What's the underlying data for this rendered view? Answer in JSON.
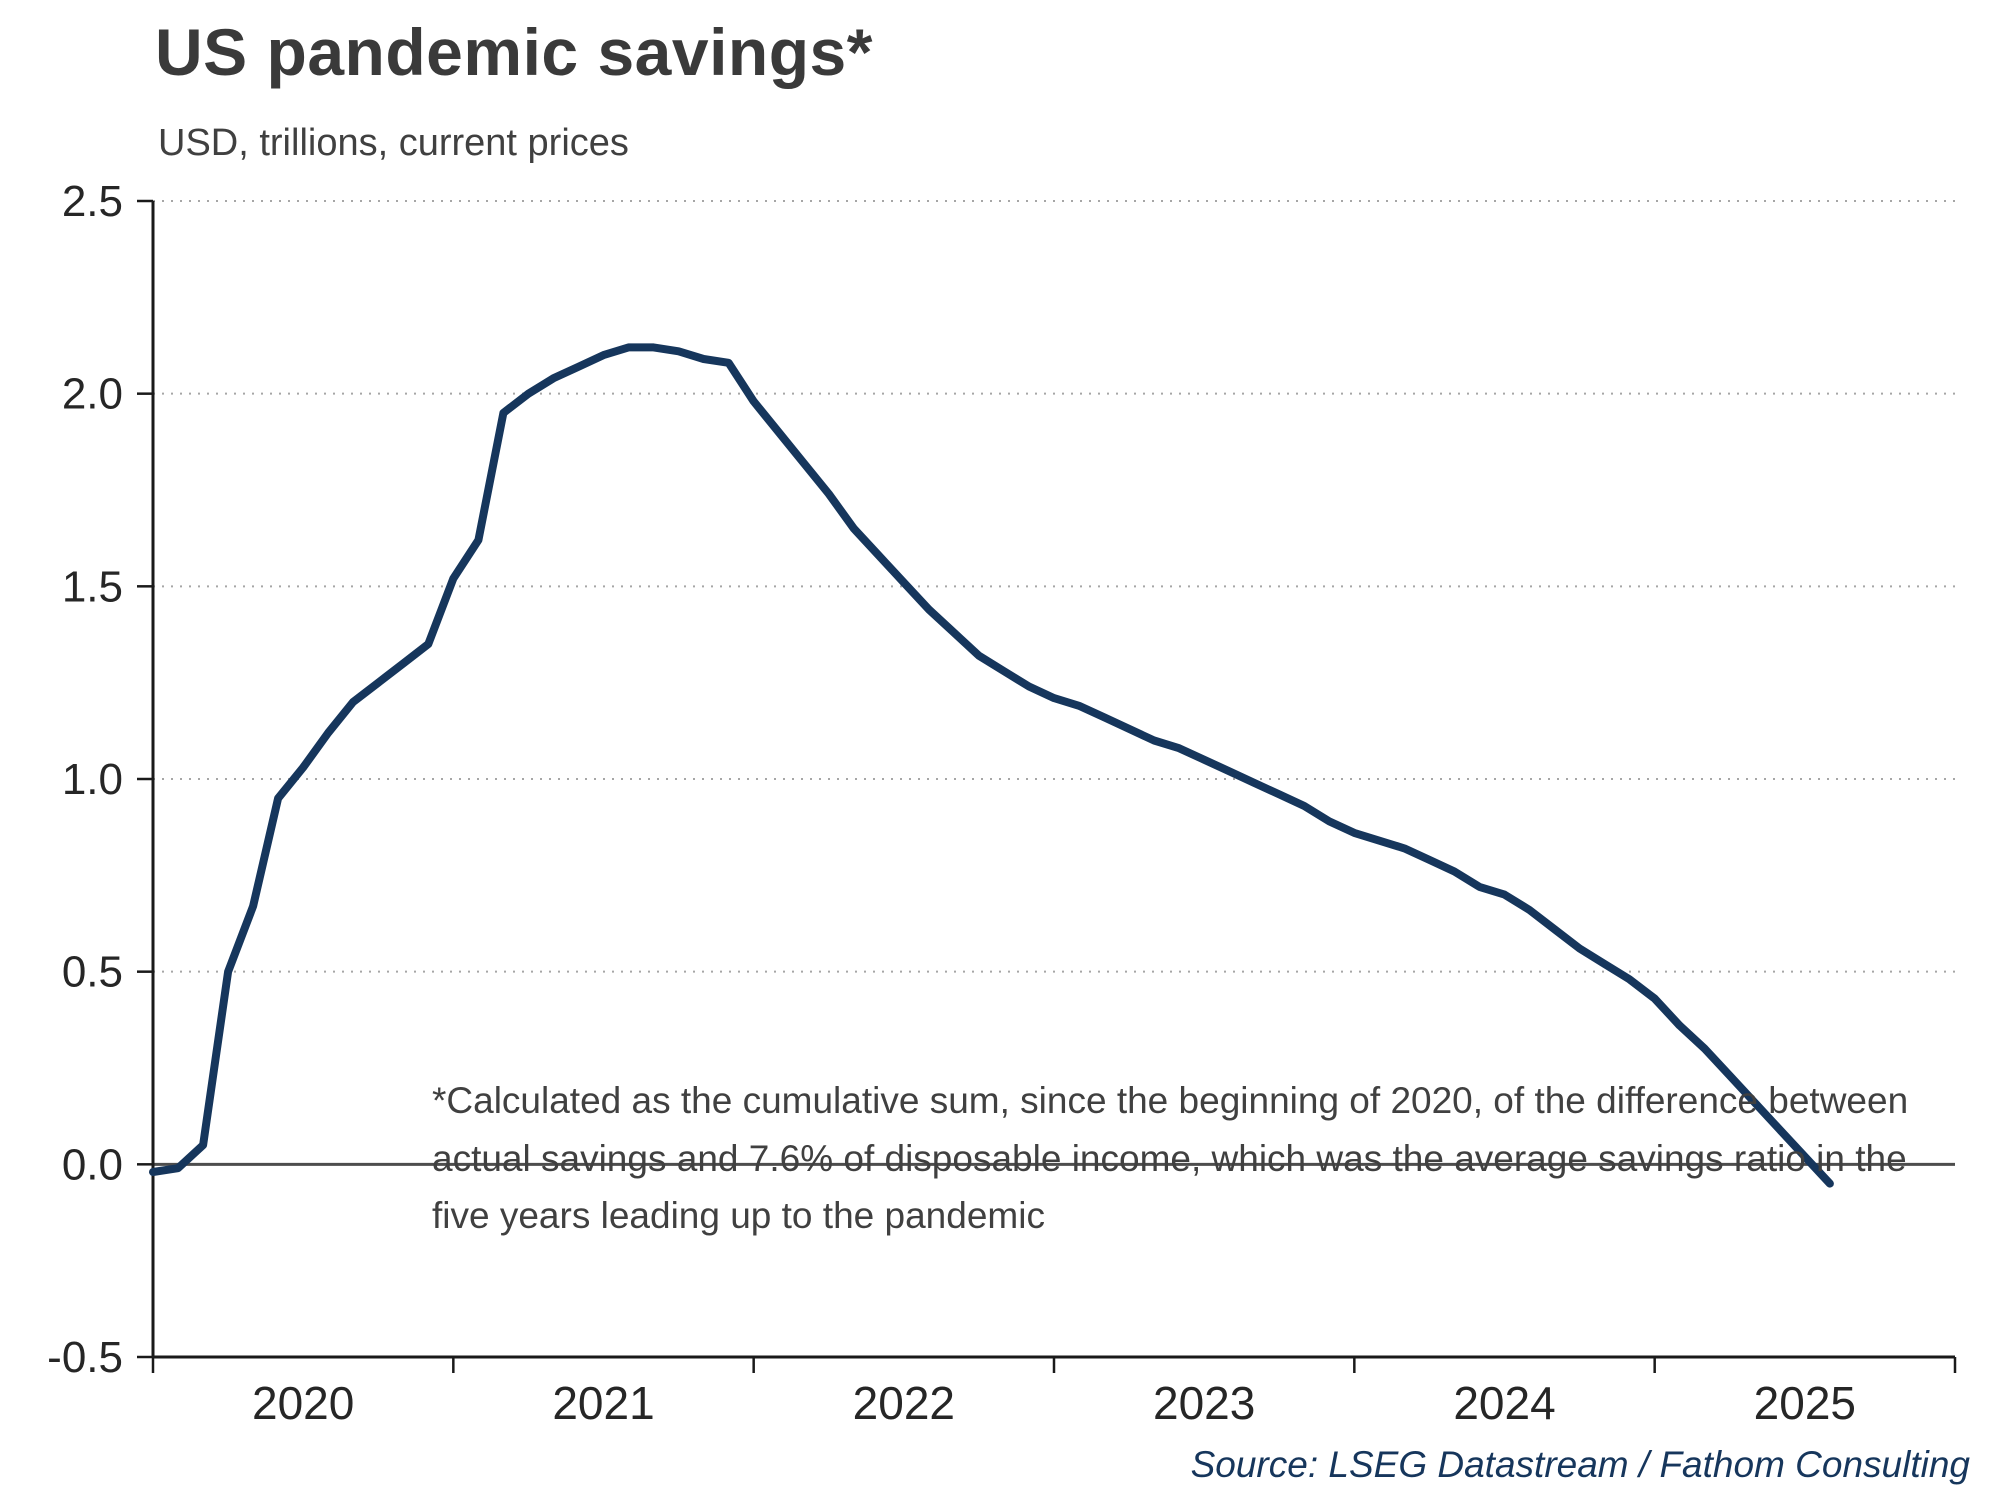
{
  "header": {
    "title": "US pandemic savings*",
    "subtitle": "USD, trillions, current prices"
  },
  "footnote": {
    "annotation": "*Calculated as the cumulative sum, since the beginning of 2020, of the difference between actual savings and 7.6% of disposable income, which was the average savings ratio in the five years leading up to the pandemic",
    "source": "Source: LSEG Datastream / Fathom Consulting"
  },
  "chart_data": {
    "type": "line",
    "title": "US pandemic savings*",
    "subtitle": "USD, trillions, current prices",
    "ylabel": "USD, trillions, current prices",
    "xlabel": "",
    "ylim": [
      -0.5,
      2.5
    ],
    "y_ticks": [
      2.5,
      2.0,
      1.5,
      1.0,
      0.5,
      0.0,
      -0.5
    ],
    "x_tick_labels": [
      "2020",
      "2021",
      "2022",
      "2023",
      "2024",
      "2025"
    ],
    "x_domain_months": 72,
    "grid": "horizontal dotted",
    "zero_line": true,
    "legend": "none",
    "colors": {
      "line": "#16365c",
      "grid": "#a6a6a6",
      "zero_line": "#4d4d4d",
      "axis": "#1a1a1a",
      "tick_label": "#262626"
    },
    "series": [
      {
        "name": "US pandemic savings",
        "color": "#16365c",
        "x": [
          "2020-01",
          "2020-02",
          "2020-03",
          "2020-04",
          "2020-05",
          "2020-06",
          "2020-07",
          "2020-08",
          "2020-09",
          "2020-10",
          "2020-11",
          "2020-12",
          "2021-01",
          "2021-02",
          "2021-03",
          "2021-04",
          "2021-05",
          "2021-06",
          "2021-07",
          "2021-08",
          "2021-09",
          "2021-10",
          "2021-11",
          "2021-12",
          "2022-01",
          "2022-02",
          "2022-03",
          "2022-04",
          "2022-05",
          "2022-06",
          "2022-07",
          "2022-08",
          "2022-09",
          "2022-10",
          "2022-11",
          "2022-12",
          "2023-01",
          "2023-02",
          "2023-03",
          "2023-04",
          "2023-05",
          "2023-06",
          "2023-07",
          "2023-08",
          "2023-09",
          "2023-10",
          "2023-11",
          "2023-12",
          "2024-01",
          "2024-02",
          "2024-03",
          "2024-04",
          "2024-05",
          "2024-06",
          "2024-07",
          "2024-08",
          "2024-09",
          "2024-10",
          "2024-11",
          "2024-12",
          "2025-01",
          "2025-02",
          "2025-03",
          "2025-04",
          "2025-05",
          "2025-06",
          "2025-07",
          "2025-08"
        ],
        "values": [
          -0.02,
          -0.01,
          0.05,
          0.5,
          0.67,
          0.95,
          1.03,
          1.12,
          1.2,
          1.25,
          1.3,
          1.35,
          1.52,
          1.62,
          1.95,
          2.0,
          2.04,
          2.07,
          2.1,
          2.12,
          2.12,
          2.11,
          2.09,
          2.08,
          1.98,
          1.9,
          1.82,
          1.74,
          1.65,
          1.58,
          1.51,
          1.44,
          1.38,
          1.32,
          1.28,
          1.24,
          1.21,
          1.19,
          1.16,
          1.13,
          1.1,
          1.08,
          1.05,
          1.02,
          0.99,
          0.96,
          0.93,
          0.89,
          0.86,
          0.84,
          0.82,
          0.79,
          0.76,
          0.72,
          0.7,
          0.66,
          0.61,
          0.56,
          0.52,
          0.48,
          0.43,
          0.36,
          0.3,
          0.23,
          0.16,
          0.09,
          0.02,
          -0.05
        ]
      }
    ]
  }
}
